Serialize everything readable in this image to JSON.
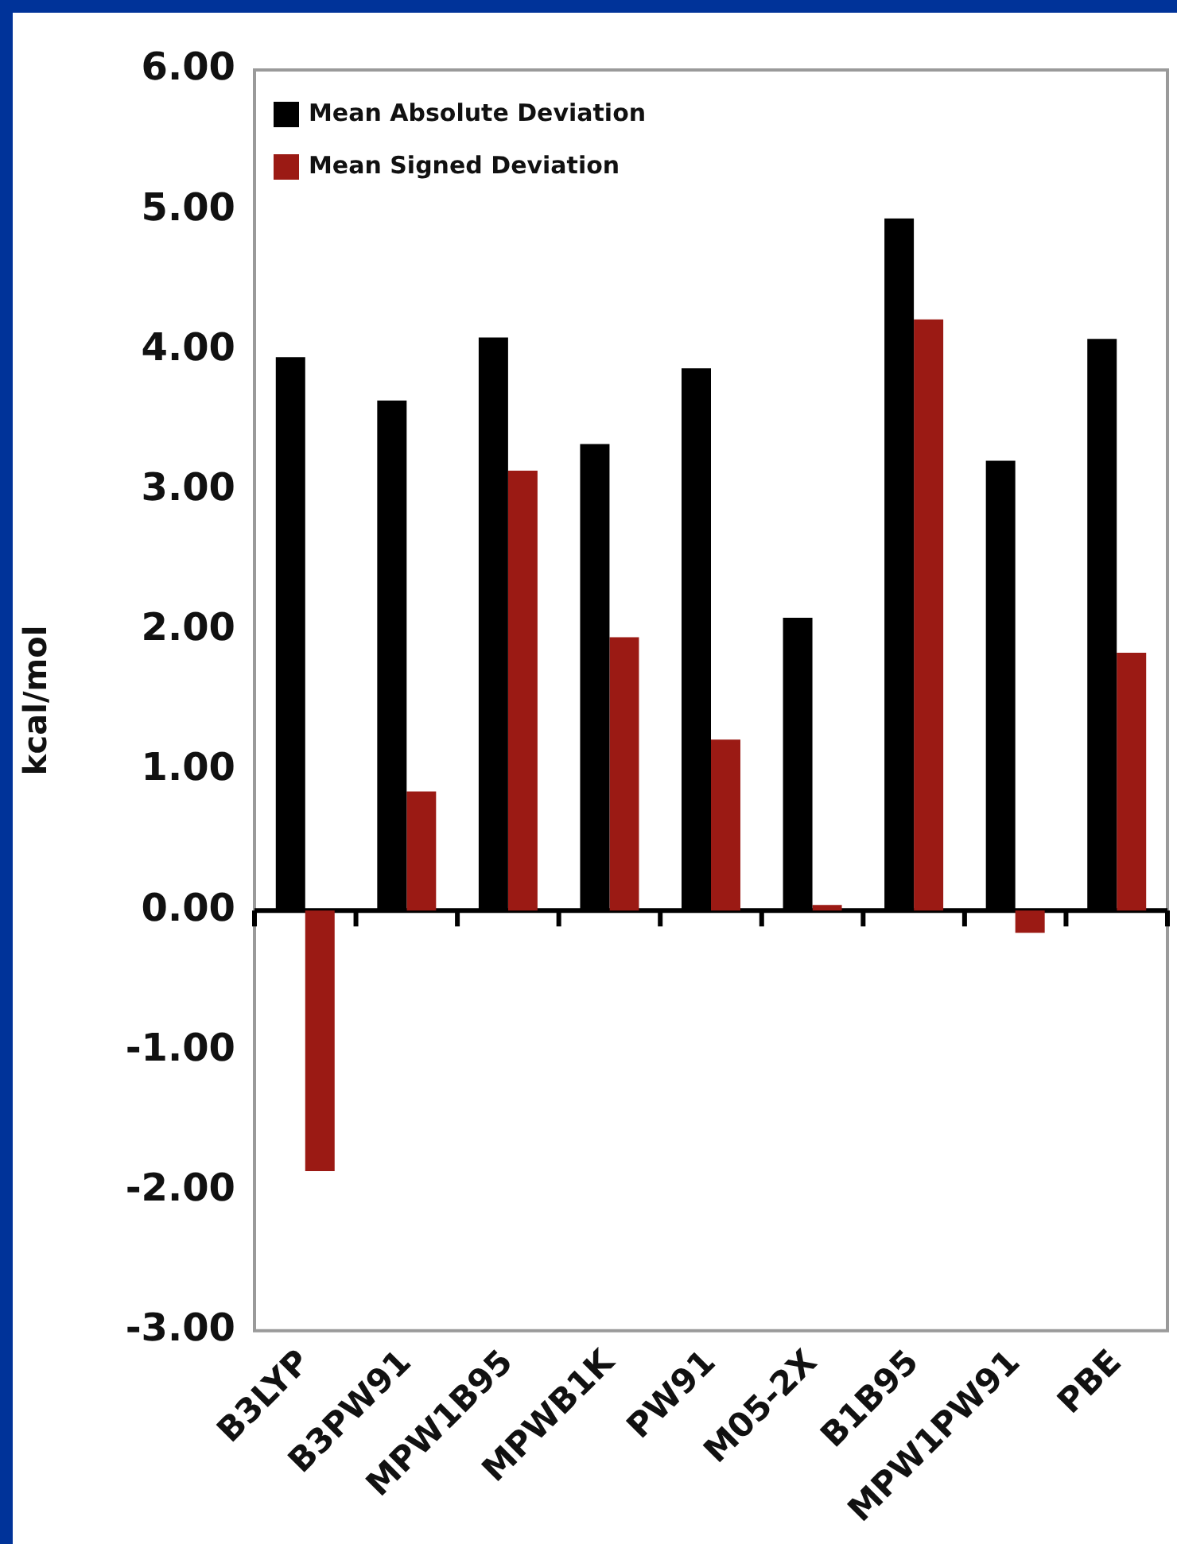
{
  "chart_data": {
    "type": "bar",
    "ylabel": "kcal/mol",
    "categories": [
      "B3LYP",
      "B3PW91",
      "MPW1B95",
      "MPWB1K",
      "PW91",
      "M05-2X",
      "B1B95",
      "MPW1PW91",
      "PBE"
    ],
    "series": [
      {
        "name": "Mean Absolute Deviation",
        "color": "#000000",
        "values": [
          3.95,
          3.64,
          4.09,
          3.33,
          3.87,
          2.09,
          4.94,
          3.21,
          4.08
        ]
      },
      {
        "name": "Mean Signed Deviation",
        "color": "#9b1a14",
        "values": [
          -1.86,
          0.85,
          3.14,
          1.95,
          1.22,
          0.04,
          4.22,
          -0.16,
          1.84
        ]
      }
    ],
    "ylim": [
      -3,
      6
    ],
    "yticks": [
      {
        "value": -3,
        "label": "-3.00"
      },
      {
        "value": -2,
        "label": "-2.00"
      },
      {
        "value": -1,
        "label": "-1.00"
      },
      {
        "value": 0,
        "label": "0.00"
      },
      {
        "value": 1,
        "label": "1.00"
      },
      {
        "value": 2,
        "label": "2.00"
      },
      {
        "value": 3,
        "label": "3.00"
      },
      {
        "value": 4,
        "label": "4.00"
      },
      {
        "value": 5,
        "label": "5.00"
      },
      {
        "value": 6,
        "label": "6.00"
      }
    ],
    "legend": "top left"
  }
}
